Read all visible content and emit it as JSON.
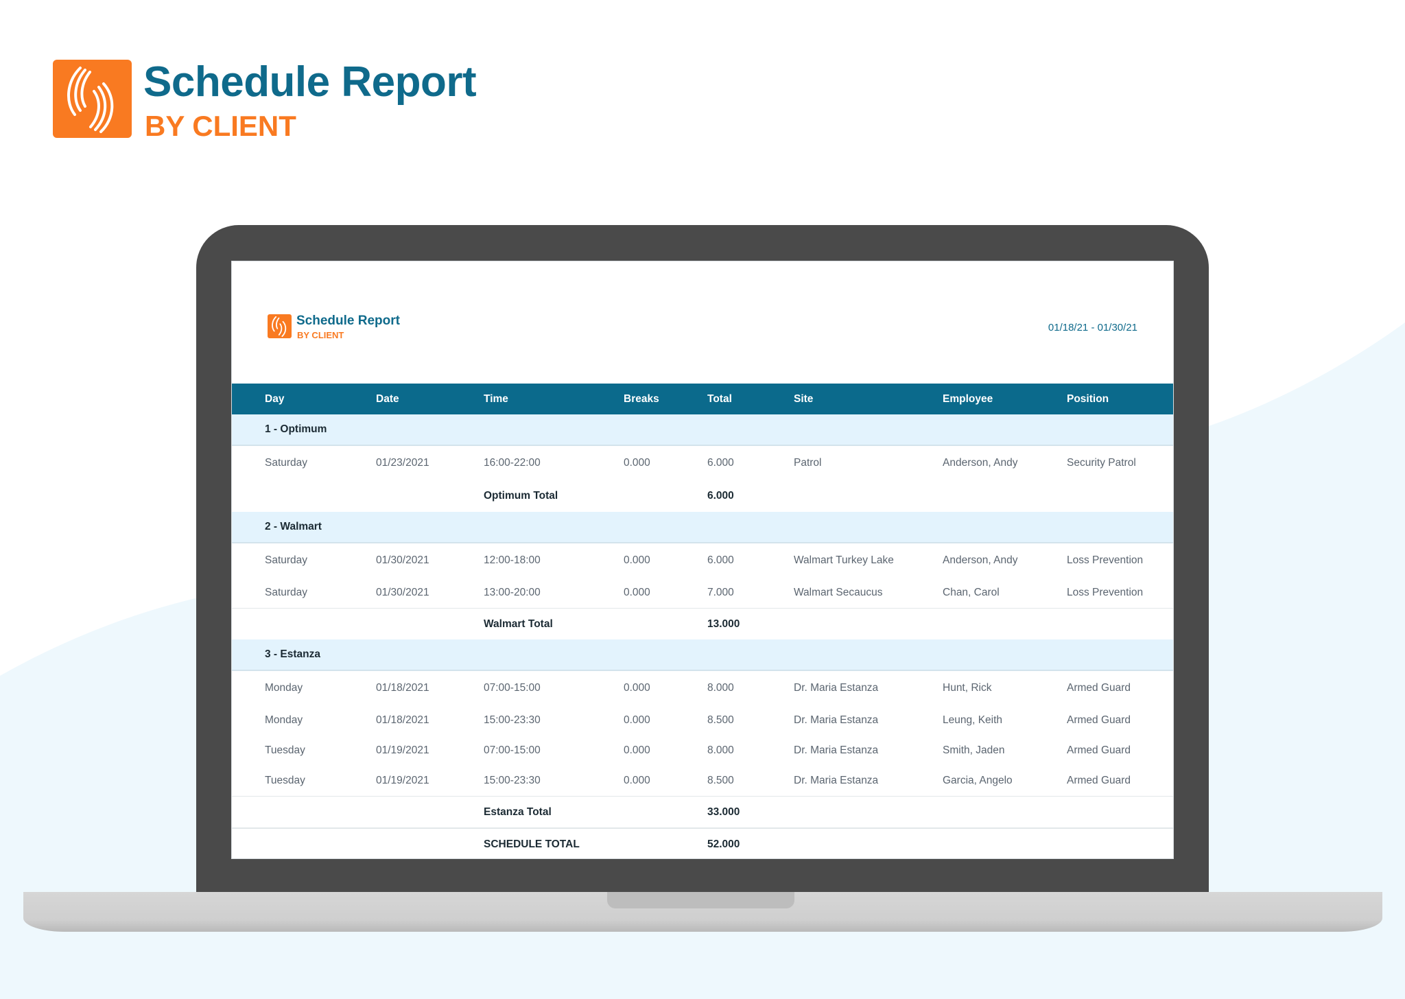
{
  "hero": {
    "title": "Schedule Report",
    "subtitle": "BY CLIENT",
    "logo_icon": "signal-waves-icon"
  },
  "colors": {
    "brand_blue": "#0f6a8b",
    "brand_orange": "#f97a21",
    "header_bg": "#0b6a8c",
    "group_bg": "#e3f3fd"
  },
  "report": {
    "title": "Schedule Report",
    "subtitle": "BY CLIENT",
    "date_range": "01/18/21 - 01/30/21",
    "columns": [
      "Day",
      "Date",
      "Time",
      "Breaks",
      "Total",
      "Site",
      "Employee",
      "Position"
    ],
    "groups": [
      {
        "name": "1 - Optimum",
        "rows": [
          [
            "Saturday",
            "01/23/2021",
            "16:00-22:00",
            "0.000",
            "6.000",
            "Patrol",
            "Anderson, Andy",
            "Security Patrol"
          ]
        ],
        "total_label": "Optimum Total",
        "total": "6.000"
      },
      {
        "name": "2 - Walmart",
        "rows": [
          [
            "Saturday",
            "01/30/2021",
            "12:00-18:00",
            "0.000",
            "6.000",
            "Walmart Turkey Lake",
            "Anderson, Andy",
            "Loss Prevention"
          ],
          [
            "Saturday",
            "01/30/2021",
            "13:00-20:00",
            "0.000",
            "7.000",
            "Walmart Secaucus",
            "Chan, Carol",
            "Loss Prevention"
          ]
        ],
        "total_label": "Walmart Total",
        "total": "13.000"
      },
      {
        "name": "3 - Estanza",
        "rows": [
          [
            "Monday",
            "01/18/2021",
            "07:00-15:00",
            "0.000",
            "8.000",
            "Dr. Maria Estanza",
            "Hunt, Rick",
            "Armed Guard"
          ],
          [
            "Monday",
            "01/18/2021",
            "15:00-23:30",
            "0.000",
            "8.500",
            "Dr. Maria Estanza",
            "Leung, Keith",
            "Armed Guard"
          ],
          [
            "Tuesday",
            "01/19/2021",
            "07:00-15:00",
            "0.000",
            "8.000",
            "Dr. Maria Estanza",
            "Smith, Jaden",
            "Armed Guard"
          ],
          [
            "Tuesday",
            "01/19/2021",
            "15:00-23:30",
            "0.000",
            "8.500",
            "Dr. Maria Estanza",
            "Garcia, Angelo",
            "Armed Guard"
          ]
        ],
        "total_label": "Estanza Total",
        "total": "33.000"
      }
    ],
    "grand_total_label": "SCHEDULE TOTAL",
    "grand_total": "52.000"
  }
}
